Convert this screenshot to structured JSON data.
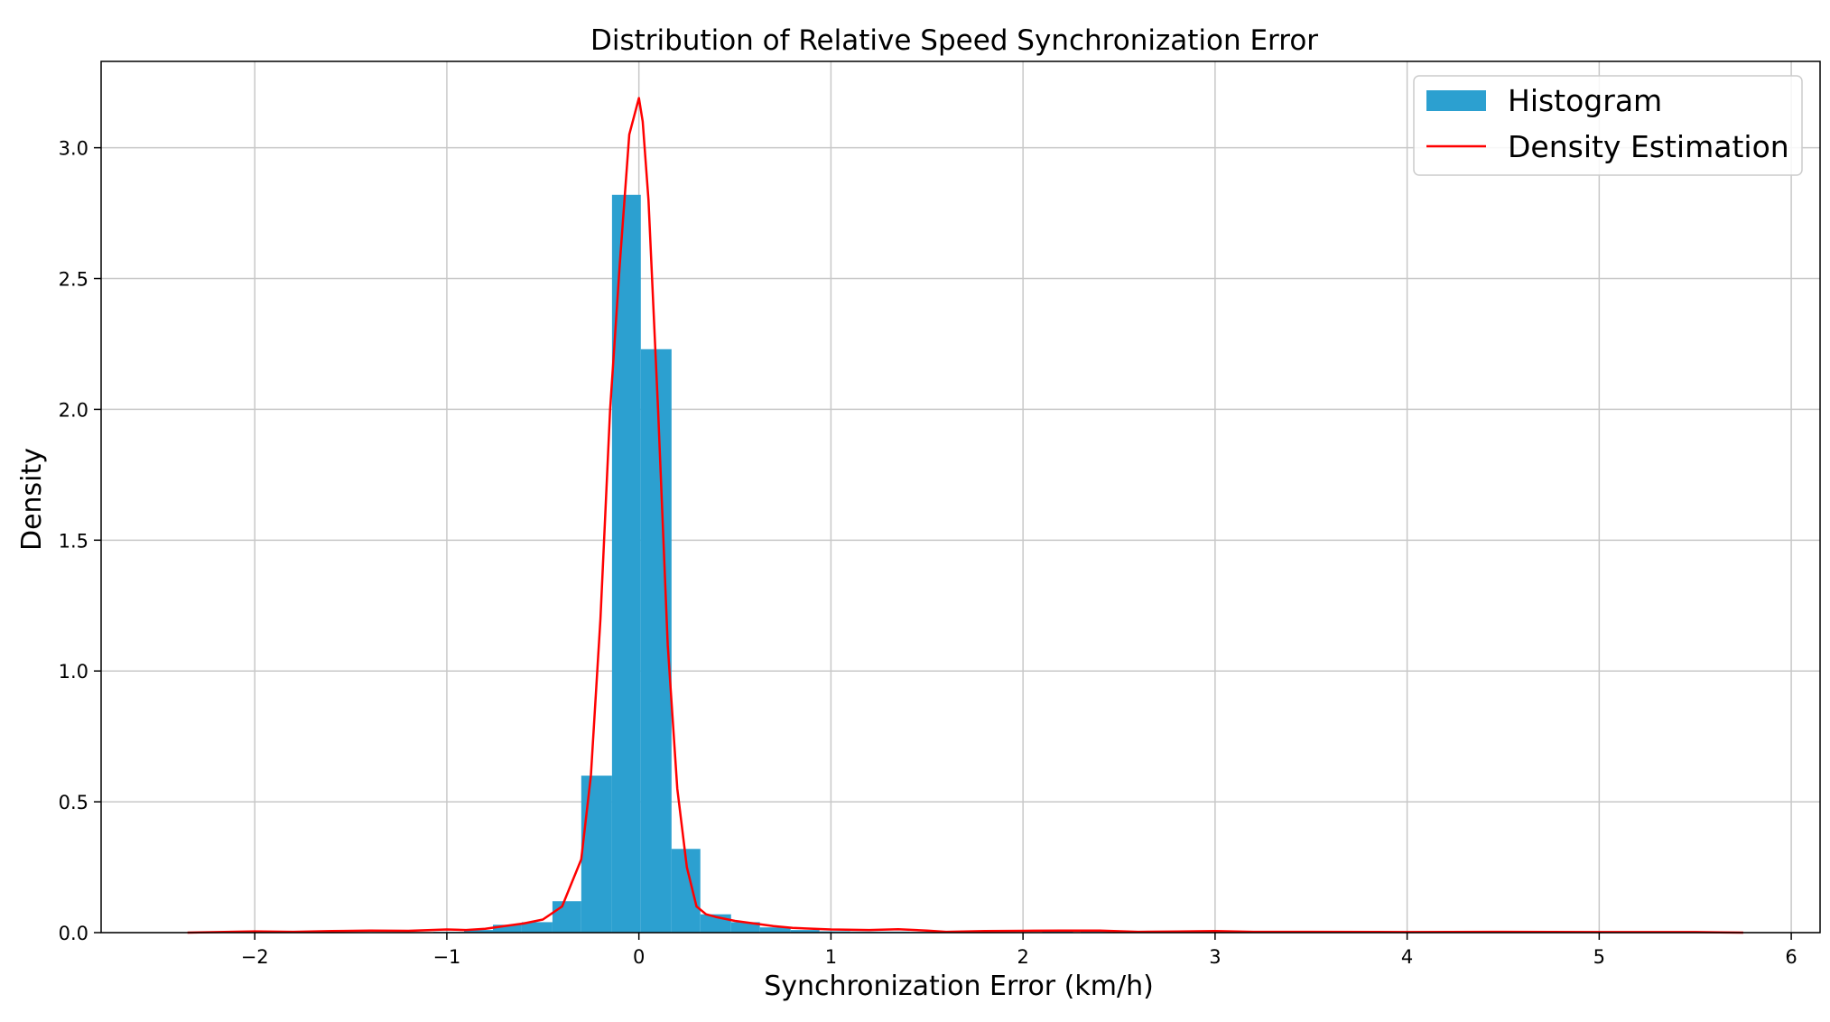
{
  "chart_data": {
    "type": "bar",
    "title": "Distribution of Relative Speed Synchronization Error",
    "xlabel": "Synchronization Error (km/h)",
    "ylabel": "Density",
    "xlim": [
      -2.8,
      6.15
    ],
    "ylim": [
      0,
      3.33
    ],
    "grid": true,
    "legend_position": "top-right",
    "x_ticks": [
      -2,
      -1,
      0,
      1,
      2,
      3,
      4,
      5,
      6
    ],
    "x_tick_labels": [
      "−2",
      "−1",
      "0",
      "1",
      "2",
      "3",
      "4",
      "5",
      "6"
    ],
    "y_ticks": [
      0.0,
      0.5,
      1.0,
      1.5,
      2.0,
      2.5,
      3.0
    ],
    "y_tick_labels": [
      "0.0",
      "0.5",
      "1.0",
      "1.5",
      "2.0",
      "2.5",
      "3.0"
    ],
    "series": [
      {
        "name": "Histogram",
        "type": "histogram",
        "color": "#2ca0d0",
        "bins": [
          {
            "x0": -1.07,
            "x1": -0.91,
            "value": 0.003
          },
          {
            "x0": -0.91,
            "x1": -0.76,
            "value": 0.01
          },
          {
            "x0": -0.76,
            "x1": -0.61,
            "value": 0.03
          },
          {
            "x0": -0.61,
            "x1": -0.45,
            "value": 0.04
          },
          {
            "x0": -0.45,
            "x1": -0.3,
            "value": 0.12
          },
          {
            "x0": -0.3,
            "x1": -0.14,
            "value": 0.6
          },
          {
            "x0": -0.14,
            "x1": 0.01,
            "value": 2.82
          },
          {
            "x0": 0.01,
            "x1": 0.17,
            "value": 2.23
          },
          {
            "x0": 0.17,
            "x1": 0.32,
            "value": 0.32
          },
          {
            "x0": 0.32,
            "x1": 0.48,
            "value": 0.07
          },
          {
            "x0": 0.48,
            "x1": 0.63,
            "value": 0.04
          },
          {
            "x0": 0.63,
            "x1": 0.79,
            "value": 0.02
          },
          {
            "x0": 0.79,
            "x1": 0.94,
            "value": 0.01
          },
          {
            "x0": 0.94,
            "x1": 1.1,
            "value": 0.005
          },
          {
            "x0": 1.1,
            "x1": 1.25,
            "value": 0.004
          },
          {
            "x0": 1.25,
            "x1": 1.41,
            "value": 0.004
          },
          {
            "x0": 1.41,
            "x1": 1.56,
            "value": 0.003
          },
          {
            "x0": 1.8,
            "x1": 1.96,
            "value": 0.002
          },
          {
            "x0": 2.1,
            "x1": 2.26,
            "value": 0.004
          },
          {
            "x0": 2.3,
            "x1": 2.46,
            "value": 0.003
          }
        ]
      },
      {
        "name": "Density Estimation",
        "type": "line",
        "color": "#ff0000",
        "x": [
          -2.35,
          -2.0,
          -1.8,
          -1.6,
          -1.4,
          -1.2,
          -1.0,
          -0.9,
          -0.8,
          -0.7,
          -0.6,
          -0.5,
          -0.4,
          -0.3,
          -0.25,
          -0.2,
          -0.15,
          -0.1,
          -0.05,
          0.0,
          0.02,
          0.05,
          0.1,
          0.15,
          0.2,
          0.25,
          0.3,
          0.35,
          0.4,
          0.5,
          0.6,
          0.7,
          0.8,
          1.0,
          1.2,
          1.35,
          1.5,
          1.6,
          1.8,
          2.0,
          2.2,
          2.4,
          2.6,
          2.8,
          3.0,
          3.2,
          3.5,
          4.0,
          4.5,
          5.0,
          5.5,
          5.75
        ],
        "y": [
          0.0,
          0.005,
          0.003,
          0.006,
          0.008,
          0.007,
          0.012,
          0.01,
          0.015,
          0.025,
          0.035,
          0.05,
          0.1,
          0.28,
          0.6,
          1.2,
          2.0,
          2.55,
          3.05,
          3.19,
          3.1,
          2.8,
          2.0,
          1.1,
          0.55,
          0.25,
          0.1,
          0.07,
          0.06,
          0.045,
          0.035,
          0.025,
          0.018,
          0.012,
          0.01,
          0.013,
          0.008,
          0.003,
          0.006,
          0.007,
          0.008,
          0.008,
          0.003,
          0.004,
          0.006,
          0.003,
          0.003,
          0.002,
          0.003,
          0.002,
          0.002,
          0.0
        ]
      }
    ]
  }
}
